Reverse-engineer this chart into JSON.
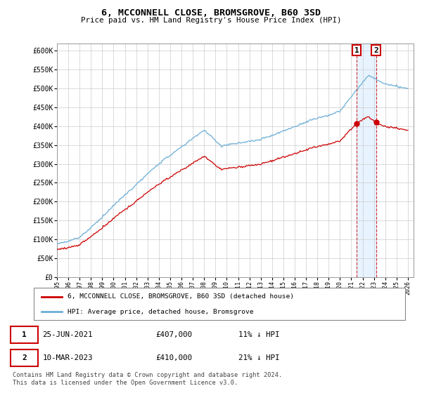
{
  "title": "6, MCCONNELL CLOSE, BROMSGROVE, B60 3SD",
  "subtitle": "Price paid vs. HM Land Registry's House Price Index (HPI)",
  "hpi_color": "#6baed6",
  "price_color": "#cc0000",
  "sale_1": {
    "date_num": 2021.47,
    "price": 407000,
    "label": "1"
  },
  "sale_2": {
    "date_num": 2023.18,
    "price": 410000,
    "label": "2"
  },
  "ylim": [
    0,
    620000
  ],
  "yticks": [
    0,
    50000,
    100000,
    150000,
    200000,
    250000,
    300000,
    350000,
    400000,
    450000,
    500000,
    550000,
    600000
  ],
  "ytick_labels": [
    "£0",
    "£50K",
    "£100K",
    "£150K",
    "£200K",
    "£250K",
    "£300K",
    "£350K",
    "£400K",
    "£450K",
    "£500K",
    "£550K",
    "£600K"
  ],
  "footer_line1": "Contains HM Land Registry data © Crown copyright and database right 2024.",
  "footer_line2": "This data is licensed under the Open Government Licence v3.0.",
  "legend_label_1": "6, MCCONNELL CLOSE, BROMSGROVE, B60 3SD (detached house)",
  "legend_label_2": "HPI: Average price, detached house, Bromsgrove",
  "table_row1": [
    "1",
    "25-JUN-2021",
    "£407,000",
    "11% ↓ HPI"
  ],
  "table_row2": [
    "2",
    "10-MAR-2023",
    "£410,000",
    "21% ↓ HPI"
  ],
  "background_color": "#ffffff",
  "grid_color": "#cccccc",
  "shade_color": "#ddeeff"
}
